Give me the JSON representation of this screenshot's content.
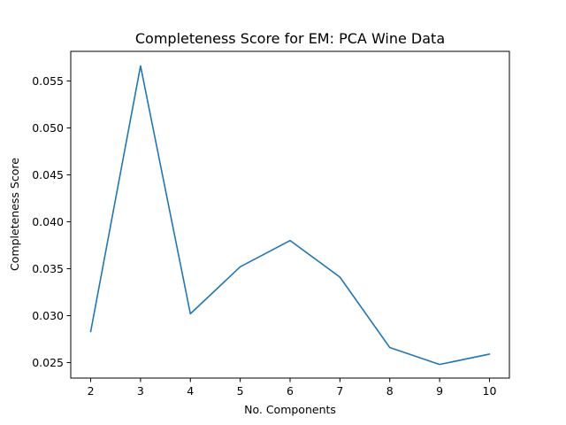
{
  "chart_data": {
    "type": "line",
    "title": "Completeness Score for EM: PCA Wine Data",
    "xlabel": "No. Components",
    "ylabel": "Completeness Score",
    "x": [
      2,
      3,
      4,
      5,
      6,
      7,
      8,
      9,
      10
    ],
    "series": [
      {
        "values": [
          0.0283,
          0.0566,
          0.0302,
          0.0352,
          0.038,
          0.0341,
          0.0266,
          0.0248,
          0.0259
        ],
        "color": "#1f77b4"
      }
    ],
    "xlim": [
      1.6,
      10.4
    ],
    "ylim": [
      0.02335,
      0.05815
    ],
    "xticks": [
      2,
      3,
      4,
      5,
      6,
      7,
      8,
      9,
      10
    ],
    "xtick_labels": [
      "2",
      "3",
      "4",
      "5",
      "6",
      "7",
      "8",
      "9",
      "10"
    ],
    "yticks": [
      0.025,
      0.03,
      0.035,
      0.04,
      0.045,
      0.05,
      0.055
    ],
    "ytick_labels": [
      "0.025",
      "0.030",
      "0.035",
      "0.040",
      "0.045",
      "0.050",
      "0.055"
    ],
    "grid": false,
    "legend": "none"
  }
}
